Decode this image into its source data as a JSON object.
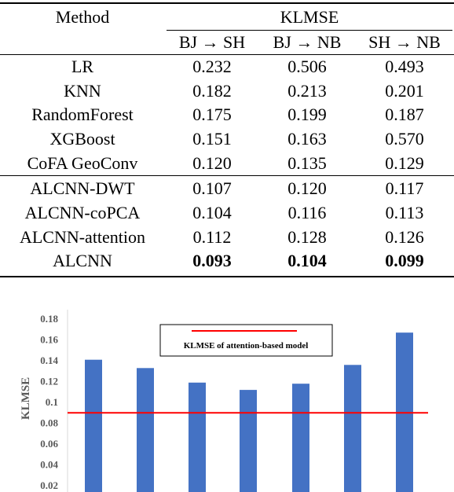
{
  "table": {
    "header_method": "Method",
    "header_metric": "KLMSE",
    "columns": [
      "BJ → SH",
      "BJ → NB",
      "SH → NB"
    ],
    "rows": [
      {
        "method": "LR",
        "values": [
          "0.232",
          "0.506",
          "0.493"
        ]
      },
      {
        "method": "KNN",
        "values": [
          "0.182",
          "0.213",
          "0.201"
        ]
      },
      {
        "method": "RandomForest",
        "values": [
          "0.175",
          "0.199",
          "0.187"
        ]
      },
      {
        "method": "XGBoost",
        "values": [
          "0.151",
          "0.163",
          "0.570"
        ]
      },
      {
        "method": "CoFA GeoConv",
        "values": [
          "0.120",
          "0.135",
          "0.129"
        ]
      },
      {
        "method": "ALCNN-DWT",
        "values": [
          "0.107",
          "0.120",
          "0.117"
        ]
      },
      {
        "method": "ALCNN-coPCA",
        "values": [
          "0.104",
          "0.116",
          "0.113"
        ]
      },
      {
        "method": "ALCNN-attention",
        "values": [
          "0.112",
          "0.128",
          "0.126"
        ]
      },
      {
        "method": "ALCNN",
        "values": [
          "0.093",
          "0.104",
          "0.099"
        ],
        "bold": true
      }
    ]
  },
  "chart_data": {
    "type": "bar",
    "ylabel": "KLMSE",
    "yticks": [
      "0.02",
      "0.04",
      "0.06",
      "0.08",
      "0.1",
      "0.12",
      "0.14",
      "0.16",
      "0.18"
    ],
    "ylim": [
      0.02,
      0.18
    ],
    "values": [
      0.141,
      0.133,
      0.119,
      0.112,
      0.118,
      0.136,
      0.167
    ],
    "bar_color": "#4472C4",
    "reference_line": {
      "value": 0.09,
      "label": "KLMSE of attention-based model",
      "color": "#FF0000"
    },
    "grid": false,
    "legend_position": "top-center"
  }
}
